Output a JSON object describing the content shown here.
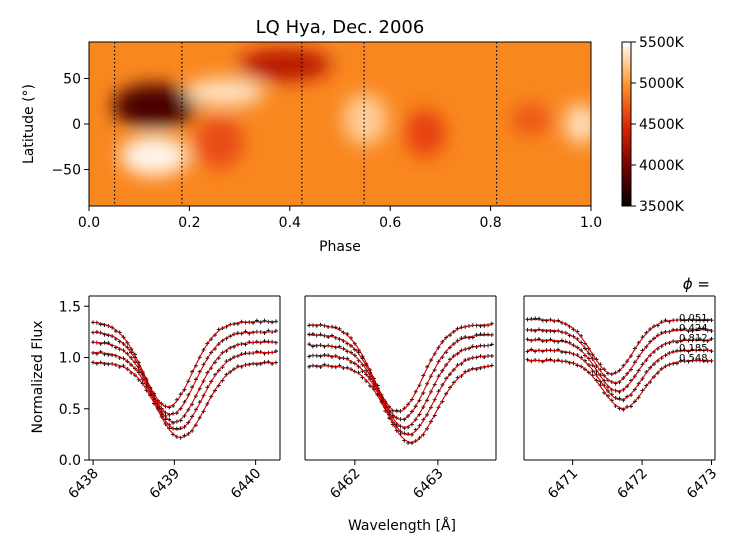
{
  "chart_data": [
    {
      "type": "heatmap",
      "title": "LQ Hya, Dec. 2006",
      "xlabel": "Phase",
      "ylabel": "Latitude (°)",
      "xlim": [
        0.0,
        1.0
      ],
      "ylim": [
        -90,
        90
      ],
      "xticks": [
        "0.0",
        "0.2",
        "0.4",
        "0.6",
        "0.8",
        "1.0"
      ],
      "yticks": [
        "50",
        "0",
        "−50"
      ],
      "phase_markers": [
        0.051,
        0.185,
        0.424,
        0.548,
        0.812
      ],
      "colorbar": {
        "range_K": [
          3500,
          5500
        ],
        "ticks": [
          "5500K",
          "5000K",
          "4500K",
          "4000K",
          "3500K"
        ]
      },
      "spots": [
        {
          "phase": 0.13,
          "lat": 20,
          "temp_K": 3800
        },
        {
          "phase": 0.39,
          "lat": 65,
          "temp_K": 4300
        },
        {
          "phase": 0.26,
          "lat": -20,
          "temp_K": 4650
        },
        {
          "phase": 0.67,
          "lat": -10,
          "temp_K": 4600
        },
        {
          "phase": 0.88,
          "lat": 5,
          "temp_K": 4700
        },
        {
          "phase": 0.13,
          "lat": -35,
          "temp_K": 5450
        },
        {
          "phase": 0.98,
          "lat": 0,
          "temp_K": 5350
        },
        {
          "phase": 0.27,
          "lat": 35,
          "temp_K": 5350
        },
        {
          "phase": 0.55,
          "lat": 5,
          "temp_K": 5250
        }
      ]
    },
    {
      "type": "line",
      "xlabel": "Wavelength [Å]",
      "ylabel": "Normalized Flux",
      "ylim": [
        0,
        1.6
      ],
      "yticks": [
        "0.0",
        "0.5",
        "1.0",
        "1.5"
      ],
      "legend_title": "ϕ =",
      "phases": [
        "0.051",
        "0.424",
        "0.812",
        "0.185",
        "0.548"
      ],
      "offsets": [
        0.4,
        0.3,
        0.2,
        0.1,
        0.0
      ],
      "panels": [
        {
          "xlim": [
            6437.95,
            6440.3
          ],
          "xticks": [
            "6438",
            "6439",
            "6440"
          ],
          "center": 6439.0,
          "width": 0.42,
          "continuum": 0.95,
          "depth": 0.83
        },
        {
          "xlim": [
            6461.4,
            6463.7
          ],
          "xticks": [
            "6462",
            "6463"
          ],
          "center": 6462.6,
          "width": 0.42,
          "continuum": 0.92,
          "depth": 0.85
        },
        {
          "xlim": [
            6470.3,
            6473.05
          ],
          "xticks": [
            "6471",
            "6472",
            "6473"
          ],
          "center": 6471.65,
          "width": 0.42,
          "continuum": 0.97,
          "depth": 0.53
        }
      ]
    }
  ]
}
